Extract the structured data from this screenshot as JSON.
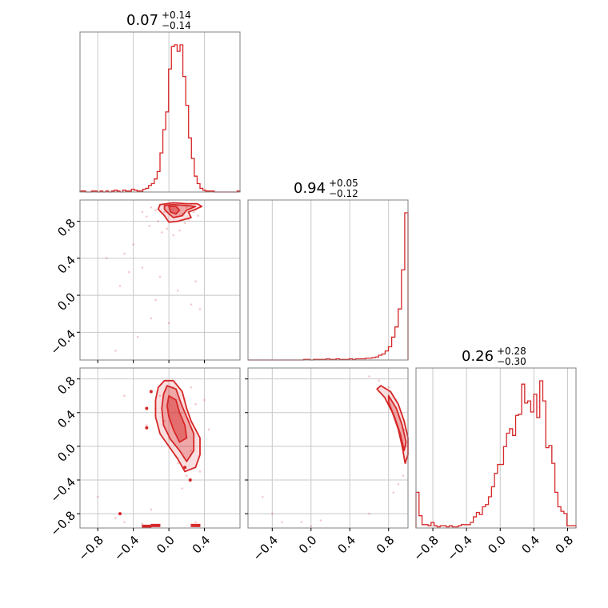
{
  "colors": {
    "series": "#d62728",
    "grid": "#c8c8c8",
    "frame": "#808080",
    "fill": "#d62728"
  },
  "chart_data": [
    {
      "type": "histogram",
      "panel": "diag-0",
      "title": {
        "value": "0.07",
        "plus": "+0.14",
        "minus": "−0.14"
      },
      "xlim": [
        -1.0,
        0.8
      ],
      "grid": true,
      "bins": {
        "edges_start": -1.0,
        "edges_stop": 0.8,
        "counts": [
          1,
          1,
          0,
          0,
          1,
          1,
          0,
          1,
          0,
          1,
          0,
          1,
          2,
          1,
          0,
          2,
          1,
          1,
          3,
          2,
          1,
          1,
          3,
          4,
          7,
          9,
          14,
          22,
          42,
          67,
          86,
          132,
          156,
          158,
          151,
          158,
          124,
          93,
          58,
          36,
          17,
          9,
          4,
          2,
          1,
          1,
          1,
          0,
          0,
          0,
          0,
          0,
          0,
          0,
          0,
          1
        ]
      }
    },
    {
      "type": "histogram",
      "panel": "diag-1",
      "title": {
        "value": "0.94",
        "plus": "+0.05",
        "minus": "−0.12"
      },
      "xlim": [
        -0.65,
        1.0
      ],
      "grid": true,
      "bins": {
        "edges_start": -0.65,
        "edges_stop": 1.0,
        "counts": [
          0,
          0,
          0,
          0,
          0,
          0,
          0,
          0,
          0,
          0,
          0,
          0,
          0,
          0,
          0,
          0,
          0,
          1,
          1,
          0,
          1,
          1,
          1,
          1,
          2,
          1,
          1,
          2,
          1,
          1,
          1,
          2,
          1,
          2,
          2,
          2,
          3,
          3,
          4,
          5,
          8,
          10,
          15,
          22,
          38,
          55,
          85,
          150,
          245
        ]
      }
    },
    {
      "type": "histogram",
      "panel": "diag-2",
      "title": {
        "value": "0.26",
        "plus": "+0.28",
        "minus": "−0.30"
      },
      "xlim": [
        -1.0,
        0.9
      ],
      "grid": true,
      "bins": {
        "edges_start": -1.0,
        "edges_stop": 0.9,
        "counts": [
          32,
          11,
          3,
          3,
          2,
          5,
          2,
          1,
          2,
          2,
          1,
          2,
          1,
          1,
          2,
          3,
          3,
          3,
          5,
          10,
          14,
          12,
          19,
          21,
          28,
          37,
          49,
          57,
          57,
          73,
          85,
          89,
          83,
          101,
          102,
          129,
          112,
          114,
          104,
          120,
          99,
          132,
          114,
          72,
          74,
          58,
          32,
          19,
          15,
          13,
          2,
          2,
          2
        ]
      }
    },
    {
      "type": "scatter",
      "panel": "pair-1-0",
      "xlim": [
        -1.0,
        0.8
      ],
      "ylim": [
        -0.7,
        1.03
      ],
      "x_ticks": [
        "−0.8",
        "−0.4",
        "0.0",
        "0.4"
      ],
      "y_ticks": [
        "0.8",
        "0.4",
        "0.0",
        "−0.4"
      ],
      "points": [
        [
          -0.2,
          0.95
        ],
        [
          -0.15,
          0.92
        ],
        [
          -0.1,
          0.97
        ],
        [
          -0.05,
          0.9
        ],
        [
          0.0,
          0.98
        ],
        [
          0.05,
          0.93
        ],
        [
          0.1,
          0.96
        ],
        [
          0.15,
          0.88
        ],
        [
          0.2,
          0.95
        ],
        [
          0.25,
          0.97
        ],
        [
          0.3,
          0.92
        ],
        [
          -0.25,
          0.85
        ],
        [
          -0.12,
          0.8
        ],
        [
          -0.02,
          0.72
        ],
        [
          0.08,
          0.85
        ],
        [
          0.18,
          0.78
        ],
        [
          0.28,
          0.9
        ],
        [
          0.33,
          0.86
        ],
        [
          0.05,
          0.65
        ],
        [
          -0.08,
          0.68
        ],
        [
          0.12,
          0.7
        ],
        [
          -0.3,
          0.9
        ],
        [
          -0.22,
          0.75
        ],
        [
          0.22,
          0.82
        ],
        [
          -0.5,
          0.45
        ],
        [
          -0.4,
          0.55
        ],
        [
          -0.7,
          0.4
        ],
        [
          -0.3,
          0.3
        ],
        [
          -0.2,
          -0.25
        ],
        [
          0.0,
          -0.3
        ],
        [
          -0.55,
          0.1
        ],
        [
          0.25,
          -0.1
        ],
        [
          0.35,
          -0.15
        ],
        [
          -0.35,
          -0.45
        ],
        [
          -0.6,
          -0.6
        ],
        [
          -0.1,
          0.2
        ],
        [
          0.1,
          0.05
        ],
        [
          -0.45,
          0.25
        ],
        [
          0.3,
          0.15
        ],
        [
          -0.15,
          -0.05
        ]
      ],
      "contours": [
        [
          [
            -0.1,
            0.98
          ],
          [
            0.05,
            1.0
          ],
          [
            0.2,
            0.99
          ],
          [
            0.32,
            0.99
          ],
          [
            0.37,
            0.96
          ],
          [
            0.3,
            0.93
          ],
          [
            0.22,
            0.9
          ],
          [
            0.25,
            0.84
          ],
          [
            0.1,
            0.8
          ],
          [
            0.0,
            0.79
          ],
          [
            -0.05,
            0.86
          ],
          [
            -0.12,
            0.93
          ]
        ],
        [
          [
            -0.05,
            0.97
          ],
          [
            0.05,
            0.98
          ],
          [
            0.2,
            0.97
          ],
          [
            0.3,
            0.96
          ],
          [
            0.2,
            0.92
          ],
          [
            0.15,
            0.86
          ],
          [
            0.05,
            0.84
          ],
          [
            0.0,
            0.88
          ],
          [
            -0.05,
            0.93
          ]
        ],
        [
          [
            0.0,
            0.96
          ],
          [
            0.08,
            0.96
          ],
          [
            0.12,
            0.92
          ],
          [
            0.08,
            0.88
          ],
          [
            0.02,
            0.9
          ]
        ]
      ]
    },
    {
      "type": "scatter",
      "panel": "pair-2-0",
      "xlim": [
        -1.0,
        0.8
      ],
      "ylim": [
        -0.97,
        0.93
      ],
      "x_ticks": [
        "−0.8",
        "−0.4",
        "0.0",
        "0.4"
      ],
      "y_ticks": [
        "0.8",
        "0.4",
        "0.0",
        "−0.4",
        "−0.8"
      ],
      "points": [
        [
          -0.1,
          0.6
        ],
        [
          0.05,
          0.7
        ],
        [
          0.15,
          0.4
        ],
        [
          -0.05,
          0.3
        ],
        [
          0.2,
          0.1
        ],
        [
          0.25,
          -0.05
        ],
        [
          0.1,
          -0.2
        ],
        [
          0.3,
          0.5
        ],
        [
          -0.15,
          0.45
        ],
        [
          0.0,
          0.1
        ],
        [
          0.35,
          -0.3
        ],
        [
          0.2,
          -0.35
        ],
        [
          -0.6,
          -0.85
        ],
        [
          -0.8,
          -0.6
        ],
        [
          -0.5,
          -0.9
        ],
        [
          -0.3,
          -0.92
        ],
        [
          0.3,
          -0.9
        ],
        [
          -0.2,
          -0.75
        ],
        [
          0.45,
          0.2
        ],
        [
          0.4,
          0.55
        ],
        [
          -0.25,
          0.25
        ],
        [
          -0.5,
          0.6
        ],
        [
          0.25,
          0.7
        ],
        [
          0.15,
          -0.5
        ]
      ],
      "filled_points": [
        [
          -0.55,
          -0.8
        ],
        [
          -0.25,
          0.45
        ],
        [
          -0.25,
          0.22
        ],
        [
          -0.2,
          0.65
        ],
        [
          0.18,
          -0.25
        ],
        [
          0.24,
          -0.4
        ]
      ],
      "contours": [
        [
          [
            -0.05,
            0.78
          ],
          [
            0.05,
            0.78
          ],
          [
            0.15,
            0.65
          ],
          [
            0.2,
            0.45
          ],
          [
            0.25,
            0.3
          ],
          [
            0.35,
            0.1
          ],
          [
            0.35,
            -0.1
          ],
          [
            0.3,
            -0.25
          ],
          [
            0.18,
            -0.3
          ],
          [
            0.1,
            -0.15
          ],
          [
            0.0,
            0.0
          ],
          [
            -0.1,
            0.15
          ],
          [
            -0.15,
            0.35
          ],
          [
            -0.15,
            0.55
          ],
          [
            -0.12,
            0.7
          ]
        ],
        [
          [
            -0.02,
            0.72
          ],
          [
            0.08,
            0.68
          ],
          [
            0.14,
            0.5
          ],
          [
            0.2,
            0.35
          ],
          [
            0.28,
            0.15
          ],
          [
            0.28,
            -0.05
          ],
          [
            0.2,
            -0.18
          ],
          [
            0.12,
            -0.05
          ],
          [
            0.02,
            0.08
          ],
          [
            -0.06,
            0.25
          ],
          [
            -0.08,
            0.45
          ],
          [
            -0.06,
            0.62
          ]
        ],
        [
          [
            0.0,
            0.6
          ],
          [
            0.08,
            0.55
          ],
          [
            0.12,
            0.4
          ],
          [
            0.18,
            0.25
          ],
          [
            0.2,
            0.1
          ],
          [
            0.12,
            0.05
          ],
          [
            0.05,
            0.2
          ],
          [
            0.0,
            0.35
          ],
          [
            -0.02,
            0.48
          ]
        ]
      ],
      "bottom_marks": [
        [
          -0.25,
          -0.95
        ],
        [
          -0.15,
          -0.94
        ],
        [
          0.3,
          -0.94
        ]
      ]
    },
    {
      "type": "scatter",
      "panel": "pair-2-1",
      "xlim": [
        -0.65,
        1.0
      ],
      "ylim": [
        -0.97,
        0.93
      ],
      "x_ticks": [
        "−0.4",
        "0.0",
        "0.4",
        "0.8"
      ],
      "points": [
        [
          0.6,
          0.83
        ],
        [
          0.7,
          0.78
        ],
        [
          0.8,
          0.7
        ],
        [
          0.88,
          0.55
        ],
        [
          0.93,
          0.4
        ],
        [
          0.97,
          0.2
        ],
        [
          0.99,
          0.0
        ],
        [
          0.98,
          -0.2
        ],
        [
          0.95,
          -0.35
        ],
        [
          0.9,
          -0.45
        ],
        [
          0.85,
          -0.55
        ],
        [
          -0.5,
          -0.6
        ],
        [
          -0.4,
          -0.8
        ],
        [
          -0.1,
          -0.9
        ],
        [
          0.0,
          -0.95
        ],
        [
          0.1,
          -0.88
        ],
        [
          -0.3,
          -0.9
        ],
        [
          0.6,
          -0.8
        ],
        [
          0.7,
          0.65
        ],
        [
          0.8,
          0.6
        ]
      ],
      "contours": [
        [
          [
            0.72,
            0.72
          ],
          [
            0.82,
            0.65
          ],
          [
            0.9,
            0.5
          ],
          [
            0.96,
            0.3
          ],
          [
            1.0,
            0.1
          ],
          [
            1.0,
            -0.1
          ],
          [
            0.97,
            -0.2
          ],
          [
            0.94,
            0.0
          ],
          [
            0.9,
            0.2
          ],
          [
            0.84,
            0.4
          ],
          [
            0.76,
            0.58
          ],
          [
            0.68,
            0.68
          ]
        ],
        [
          [
            0.8,
            0.6
          ],
          [
            0.88,
            0.45
          ],
          [
            0.94,
            0.25
          ],
          [
            0.98,
            0.05
          ],
          [
            0.96,
            -0.05
          ],
          [
            0.92,
            0.15
          ],
          [
            0.86,
            0.35
          ],
          [
            0.8,
            0.52
          ]
        ]
      ]
    }
  ]
}
